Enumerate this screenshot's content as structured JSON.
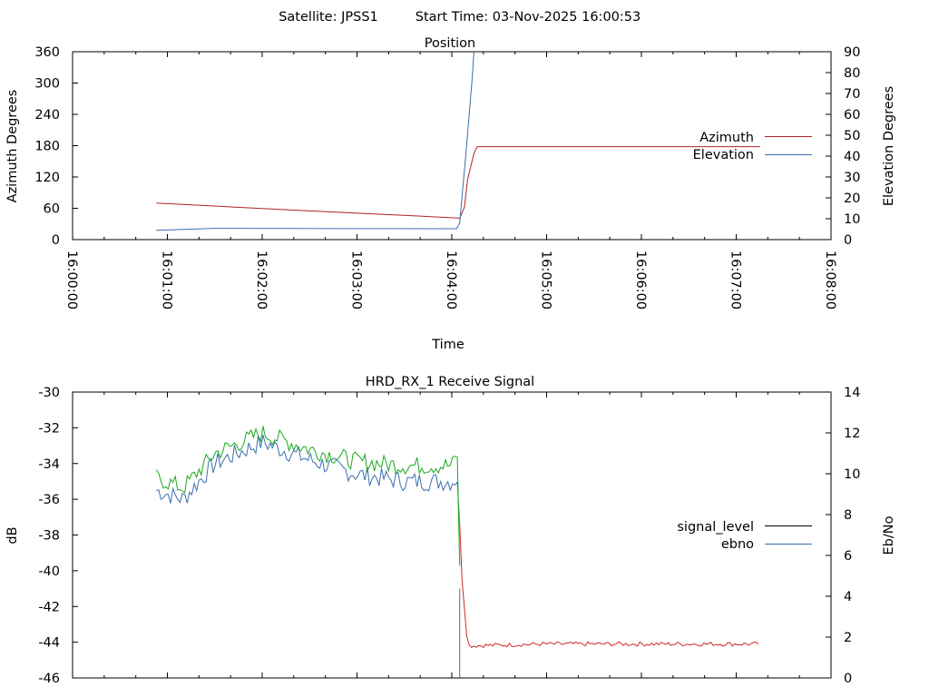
{
  "header": {
    "satellite": "Satellite: JPSS1",
    "start_time": "Start Time: 03-Nov-2025 16:00:53"
  },
  "colors": {
    "azimuth": "#b22222",
    "elevation": "#3a6eb0",
    "signal_level": "#cc2a2a",
    "ebno": "#1ca81c",
    "ebno_dip": "#3a6eb0"
  },
  "chart_data": [
    {
      "type": "line",
      "title": "Position",
      "xlabel": "Time",
      "ylabel": "Azimuth Degrees",
      "y2label": "Elevation Degrees",
      "xlim": [
        "16:00:00",
        "16:08:00"
      ],
      "ylim": [
        0,
        360
      ],
      "y2lim": [
        0,
        90
      ],
      "xticks": [
        "16:00:00",
        "16:01:00",
        "16:02:00",
        "16:03:00",
        "16:04:00",
        "16:05:00",
        "16:06:00",
        "16:07:00",
        "16:08:00"
      ],
      "yticks": [
        "0",
        "60",
        "120",
        "180",
        "240",
        "300",
        "360"
      ],
      "y2ticks": [
        "0",
        "10",
        "20",
        "30",
        "40",
        "50",
        "60",
        "70",
        "80",
        "90"
      ],
      "legend_position": "right",
      "series": [
        {
          "name": "Azimuth",
          "axis": "y",
          "x": [
            "16:00:53",
            "16:02:30",
            "16:03:40",
            "16:04:05",
            "16:04:08",
            "16:04:10",
            "16:04:12",
            "16:04:14",
            "16:04:16",
            "16:07:15"
          ],
          "y": [
            70,
            55,
            45,
            41,
            62,
            115,
            140,
            165,
            178,
            178
          ]
        },
        {
          "name": "Elevation",
          "axis": "y2",
          "x": [
            "16:00:53",
            "16:01:30",
            "16:04:03",
            "16:04:05",
            "16:04:07",
            "16:04:09",
            "16:04:11",
            "16:04:13",
            "16:04:14"
          ],
          "y": [
            4.5,
            5.4,
            5.2,
            8,
            25,
            42,
            60,
            78,
            90
          ]
        }
      ]
    },
    {
      "type": "line",
      "title": "HRD_RX_1 Receive Signal",
      "ylabel": "dB",
      "y2label": "Eb/No",
      "ylim": [
        -46,
        -30
      ],
      "y2lim": [
        0,
        14
      ],
      "yticks": [
        "-30",
        "-32",
        "-34",
        "-36",
        "-38",
        "-40",
        "-42",
        "-44",
        "-46"
      ],
      "y2ticks": [
        "0",
        "2",
        "4",
        "6",
        "8",
        "10",
        "12",
        "14"
      ],
      "legend_position": "right",
      "series": [
        {
          "name": "signal_level",
          "axis": "y",
          "x": [
            "16:00:53",
            "16:01:10",
            "16:01:30",
            "16:02:00",
            "16:02:30",
            "16:03:00",
            "16:03:30",
            "16:04:00",
            "16:04:04",
            "16:04:06",
            "16:04:10",
            "16:05:00",
            "16:06:00",
            "16:07:00",
            "16:07:15"
          ],
          "y": [
            -35.5,
            -36.0,
            -34.0,
            -32.8,
            -33.8,
            -34.6,
            -35.0,
            -35.0,
            -34.8,
            -40,
            -44.2,
            -44.1,
            -44.1,
            -44.1,
            -44.1
          ]
        },
        {
          "name": "ebno",
          "axis": "y2",
          "x": [
            "16:00:53",
            "16:01:10",
            "16:01:30",
            "16:02:00",
            "16:02:30",
            "16:03:00",
            "16:03:30",
            "16:04:00",
            "16:04:04",
            "16:04:06"
          ],
          "y": [
            9.8,
            9.3,
            11.0,
            12.0,
            11.2,
            10.6,
            10.4,
            10.4,
            11.0,
            0
          ]
        }
      ]
    }
  ]
}
